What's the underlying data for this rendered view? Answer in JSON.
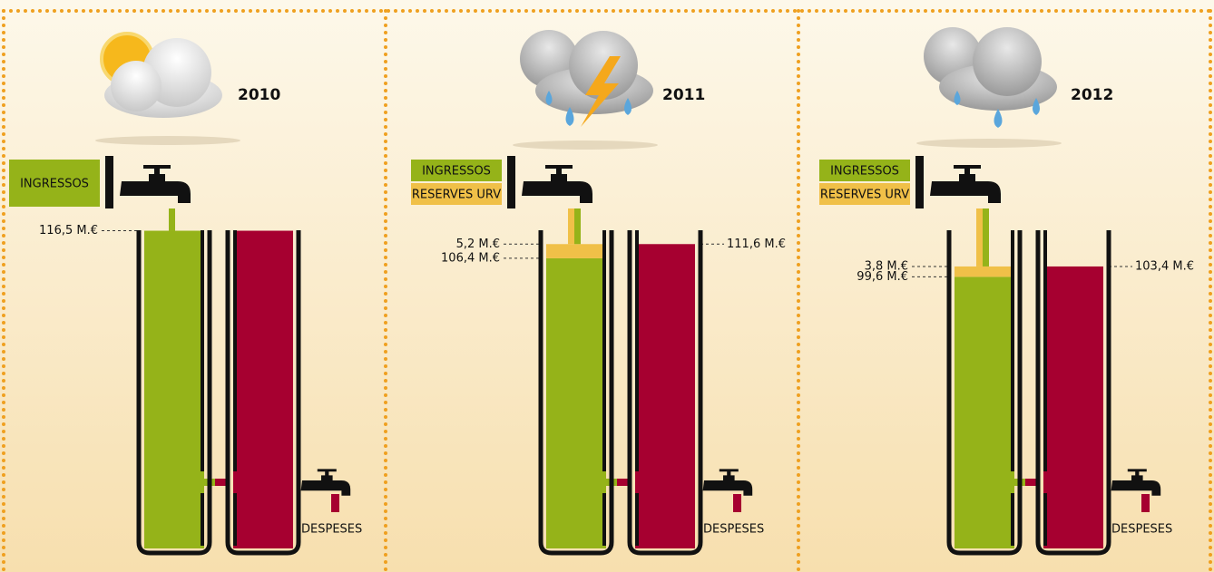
{
  "chart_data": [
    {
      "type": "tank",
      "title": "2010",
      "ylim": [
        0,
        120
      ],
      "series": [
        {
          "name": "INGRESSOS",
          "color": "#95b319",
          "values": [
            116.5
          ],
          "value_labels": [
            "116,5 M.€"
          ]
        }
      ],
      "outflow": {
        "name": "DESPESES",
        "color": "#a60030",
        "value": 116.5
      }
    },
    {
      "type": "tank",
      "title": "2011",
      "ylim": [
        0,
        120
      ],
      "series": [
        {
          "name": "INGRESSOS",
          "color": "#95b319",
          "values": [
            106.4
          ],
          "value_labels": [
            "106,4 M.€"
          ]
        },
        {
          "name": "RESERVES URV",
          "color": "#f0c048",
          "values": [
            5.2
          ],
          "value_labels": [
            "5,2 M.€"
          ]
        }
      ],
      "outflow": {
        "name": "DESPESES",
        "color": "#a60030",
        "value": 111.6,
        "value_label": "111,6 M.€"
      }
    },
    {
      "type": "tank",
      "title": "2012",
      "ylim": [
        0,
        120
      ],
      "series": [
        {
          "name": "INGRESSOS",
          "color": "#95b319",
          "values": [
            99.6
          ],
          "value_labels": [
            "99,6 M.€"
          ]
        },
        {
          "name": "RESERVES URV",
          "color": "#f0c048",
          "values": [
            3.8
          ],
          "value_labels": [
            "3,8 M.€"
          ]
        }
      ],
      "outflow": {
        "name": "DESPESES",
        "color": "#a60030",
        "value": 103.4,
        "value_label": "103,4 M.€"
      }
    }
  ]
}
